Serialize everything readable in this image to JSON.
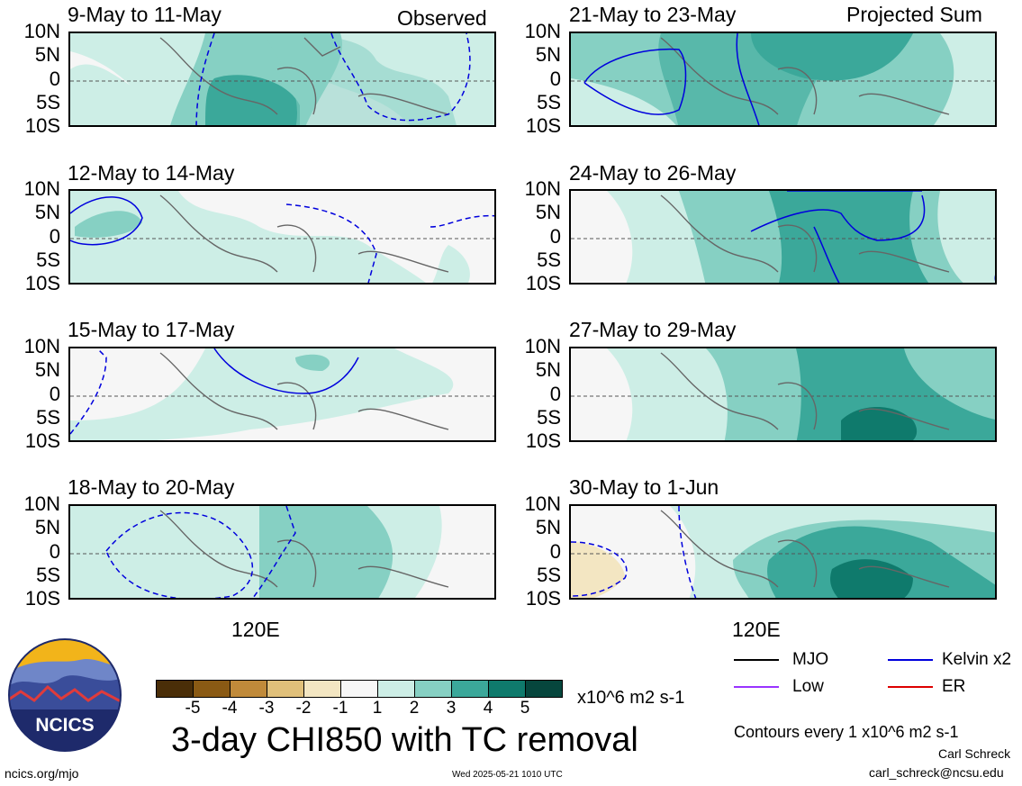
{
  "header": {
    "left_tag": "Observed",
    "right_tag": "Projected Sum"
  },
  "panels": [
    {
      "title": "9-May to 11-May"
    },
    {
      "title": "12-May to 14-May"
    },
    {
      "title": "15-May to 17-May"
    },
    {
      "title": "18-May to 20-May"
    },
    {
      "title": "21-May to 23-May"
    },
    {
      "title": "24-May to 26-May"
    },
    {
      "title": "27-May to 29-May"
    },
    {
      "title": "30-May to 1-Jun"
    }
  ],
  "axes": {
    "lat_labels": [
      "10N",
      "5N",
      "0",
      "5S",
      "10S"
    ],
    "lon_label": "120E"
  },
  "colorbar": {
    "labels": [
      "-5",
      "-4",
      "-3",
      "-2",
      "-1",
      "1",
      "2",
      "3",
      "4",
      "5"
    ],
    "colors": [
      "#4a2e08",
      "#8a5a14",
      "#c08a3a",
      "#e0c07a",
      "#f3e6c2",
      "#f7f7f7",
      "#cdeee6",
      "#86d0c3",
      "#3ba89a",
      "#0f7a6c",
      "#06463d"
    ],
    "units": "x10^6 m2 s-1"
  },
  "title": "3-day CHI850 with TC removal",
  "legend": [
    {
      "label": "MJO",
      "color": "#000000"
    },
    {
      "label": "Kelvin x2",
      "color": "#0000dd"
    },
    {
      "label": "Low",
      "color": "#9933ff"
    },
    {
      "label": "ER",
      "color": "#dd0000"
    }
  ],
  "contour_note": "Contours every 1 x10^6 m2 s-1",
  "author": "Carl Schreck",
  "email": "carl_schreck@ncsu.edu",
  "website": "ncics.org/mjo",
  "timestamp": "Wed 2025-05-21 1010 UTC",
  "logo_text": "NCICS"
}
